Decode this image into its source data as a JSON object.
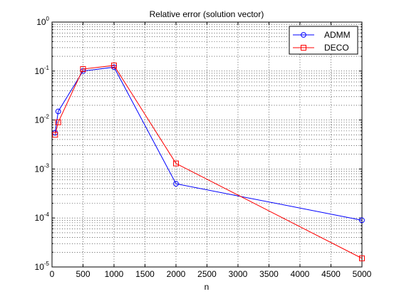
{
  "chart_data": {
    "type": "line",
    "title": "Relative error (solution vector)",
    "xlabel": "n",
    "ylabel": "",
    "xlim": [
      0,
      5000
    ],
    "ylim": [
      1e-05,
      1
    ],
    "yscale": "log",
    "grid": "dotted, major and minor on y, major on x",
    "legend_position": "top-right",
    "x_ticks": [
      0,
      500,
      1000,
      1500,
      2000,
      2500,
      3000,
      3500,
      4000,
      4500,
      5000
    ],
    "y_tick_exponents": [
      -5,
      -4,
      -3,
      -2,
      -1,
      0
    ],
    "y_tick_base": "10",
    "series": [
      {
        "name": "ADMM",
        "color": "#0000ff",
        "marker": "circle",
        "x": [
          50,
          100,
          500,
          1000,
          2000,
          5000
        ],
        "y": [
          0.0055,
          0.015,
          0.1,
          0.12,
          0.0005,
          9e-05
        ]
      },
      {
        "name": "DECO",
        "color": "#ff0000",
        "marker": "square",
        "x": [
          50,
          100,
          500,
          1000,
          2000,
          5000
        ],
        "y": [
          0.005,
          0.009,
          0.11,
          0.13,
          0.0013,
          1.5e-05
        ]
      }
    ]
  }
}
